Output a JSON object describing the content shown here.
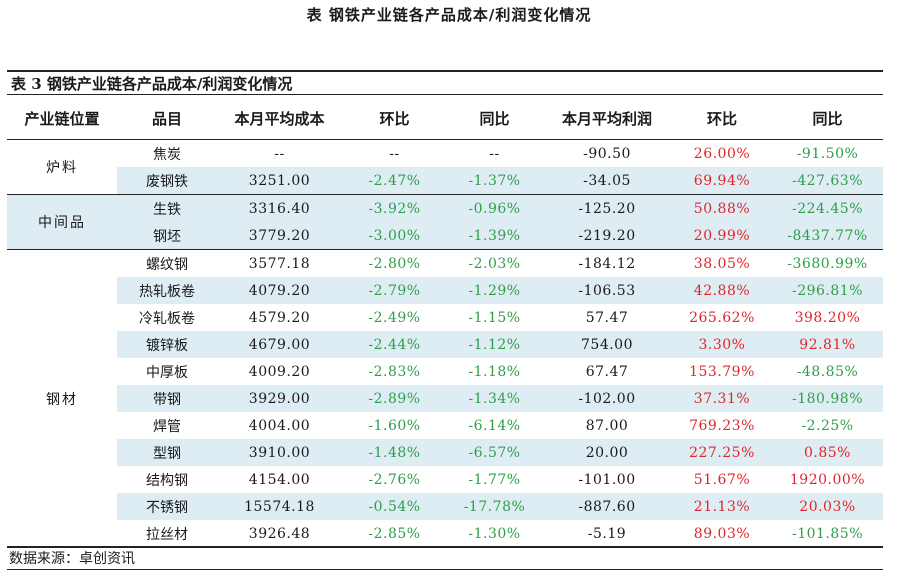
{
  "page_title": "表  钢铁产业链各产品成本/利润变化情况",
  "table_title": "表 3 钢铁产业链各产品成本/利润变化情况",
  "headers": [
    "产业链位置",
    "品目",
    "本月平均成本",
    "环比",
    "同比",
    "本月平均利润",
    "环比",
    "同比"
  ],
  "groups": [
    {
      "name": "炉料",
      "rows": [
        {
          "item": "焦炭",
          "cost": "--",
          "cost_mom": "--",
          "cost_yoy": "--",
          "profit": "-90.50",
          "profit_mom": "26.00%",
          "profit_yoy": "-91.50%"
        },
        {
          "item": "废钢铁",
          "cost": "3251.00",
          "cost_mom": "-2.47%",
          "cost_yoy": "-1.37%",
          "profit": "-34.05",
          "profit_mom": "69.94%",
          "profit_yoy": "-427.63%"
        }
      ]
    },
    {
      "name": "中间品",
      "rows": [
        {
          "item": "生铁",
          "cost": "3316.40",
          "cost_mom": "-3.92%",
          "cost_yoy": "-0.96%",
          "profit": "-125.20",
          "profit_mom": "50.88%",
          "profit_yoy": "-224.45%"
        },
        {
          "item": "钢坯",
          "cost": "3779.20",
          "cost_mom": "-3.00%",
          "cost_yoy": "-1.39%",
          "profit": "-219.20",
          "profit_mom": "20.99%",
          "profit_yoy": "-8437.77%"
        }
      ]
    },
    {
      "name": "钢材",
      "rows": [
        {
          "item": "螺纹钢",
          "cost": "3577.18",
          "cost_mom": "-2.80%",
          "cost_yoy": "-2.03%",
          "profit": "-184.12",
          "profit_mom": "38.05%",
          "profit_yoy": "-3680.99%"
        },
        {
          "item": "热轧板卷",
          "cost": "4079.20",
          "cost_mom": "-2.79%",
          "cost_yoy": "-1.29%",
          "profit": "-106.53",
          "profit_mom": "42.88%",
          "profit_yoy": "-296.81%"
        },
        {
          "item": "冷轧板卷",
          "cost": "4579.20",
          "cost_mom": "-2.49%",
          "cost_yoy": "-1.15%",
          "profit": "57.47",
          "profit_mom": "265.62%",
          "profit_yoy": "398.20%"
        },
        {
          "item": "镀锌板",
          "cost": "4679.00",
          "cost_mom": "-2.44%",
          "cost_yoy": "-1.12%",
          "profit": "754.00",
          "profit_mom": "3.30%",
          "profit_yoy": "92.81%"
        },
        {
          "item": "中厚板",
          "cost": "4009.20",
          "cost_mom": "-2.83%",
          "cost_yoy": "-1.18%",
          "profit": "67.47",
          "profit_mom": "153.79%",
          "profit_yoy": "-48.85%"
        },
        {
          "item": "带钢",
          "cost": "3929.00",
          "cost_mom": "-2.89%",
          "cost_yoy": "-1.34%",
          "profit": "-102.00",
          "profit_mom": "37.31%",
          "profit_yoy": "-180.98%"
        },
        {
          "item": "焊管",
          "cost": "4004.00",
          "cost_mom": "-1.60%",
          "cost_yoy": "-6.14%",
          "profit": "87.00",
          "profit_mom": "769.23%",
          "profit_yoy": "-2.25%"
        },
        {
          "item": "型钢",
          "cost": "3910.00",
          "cost_mom": "-1.48%",
          "cost_yoy": "-6.57%",
          "profit": "20.00",
          "profit_mom": "227.25%",
          "profit_yoy": "0.85%"
        },
        {
          "item": "结构钢",
          "cost": "4154.00",
          "cost_mom": "-2.76%",
          "cost_yoy": "-1.77%",
          "profit": "-101.00",
          "profit_mom": "51.67%",
          "profit_yoy": "1920.00%"
        },
        {
          "item": "不锈钢",
          "cost": "15574.18",
          "cost_mom": "-0.54%",
          "cost_yoy": "-17.78%",
          "profit": "-887.60",
          "profit_mom": "21.13%",
          "profit_yoy": "20.03%"
        },
        {
          "item": "拉丝材",
          "cost": "3926.48",
          "cost_mom": "-2.85%",
          "cost_yoy": "-1.30%",
          "profit": "-5.19",
          "profit_mom": "89.03%",
          "profit_yoy": "-101.85%"
        }
      ]
    }
  ],
  "source": "数据来源：卓创资讯",
  "colors": {
    "positive": "#e0262a",
    "negative": "#2e9e4b",
    "shade": "#deedf3"
  }
}
